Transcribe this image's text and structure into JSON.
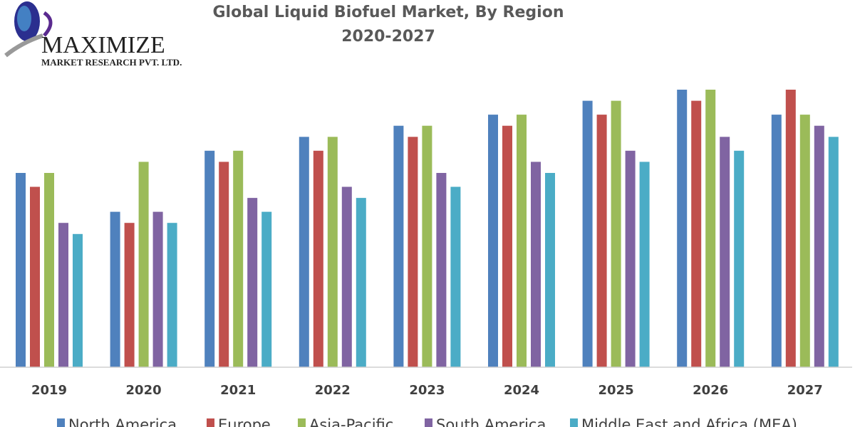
{
  "logo": {
    "name": "MAXIMIZE",
    "subtitle": "MARKET RESEARCH PVT. LTD."
  },
  "chart_data": {
    "type": "bar",
    "title": "Global Liquid Biofuel Market, By Region",
    "subtitle": "2020-2027",
    "xlabel": "",
    "ylabel": "",
    "ylim": [
      0,
      100
    ],
    "grid": false,
    "legend_position": "bottom",
    "categories": [
      "2019",
      "2020",
      "2021",
      "2022",
      "2023",
      "2024",
      "2025",
      "2026",
      "2027"
    ],
    "series": [
      {
        "name": "North America",
        "color": "#4f81bd",
        "values": [
          70,
          56,
          78,
          83,
          87,
          91,
          96,
          100,
          91
        ]
      },
      {
        "name": "Europe",
        "color": "#c0504d",
        "values": [
          65,
          52,
          74,
          78,
          83,
          87,
          91,
          96,
          100
        ]
      },
      {
        "name": "Asia-Pacific",
        "color": "#9bbb59",
        "values": [
          70,
          74,
          78,
          83,
          87,
          91,
          96,
          100,
          91
        ]
      },
      {
        "name": "South America",
        "color": "#8064a2",
        "values": [
          52,
          56,
          61,
          65,
          70,
          74,
          78,
          83,
          87
        ]
      },
      {
        "name": "Middle East and Africa (MEA)",
        "color": "#4bacc6",
        "values": [
          48,
          52,
          56,
          61,
          65,
          70,
          74,
          78,
          83
        ]
      }
    ]
  }
}
